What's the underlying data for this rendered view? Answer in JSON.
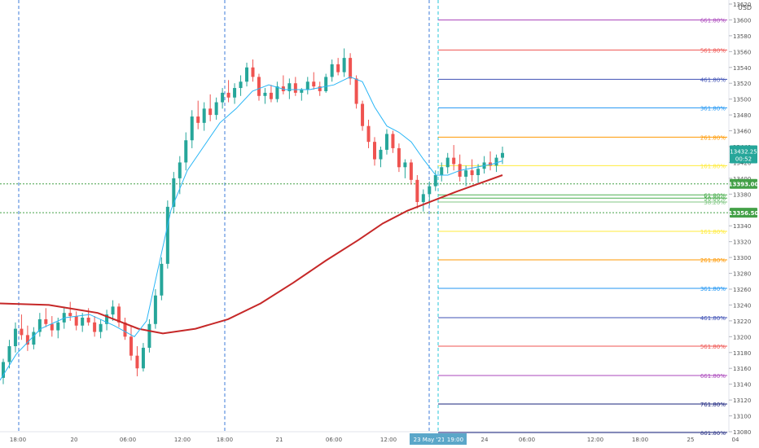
{
  "chart_data": {
    "type": "candlestick",
    "currency": "USD",
    "price_axis": {
      "min": 13080,
      "max": 13620,
      "ticks": [
        13620,
        13600,
        13580,
        13560,
        13540,
        13520,
        13500,
        13480,
        13460,
        13440,
        13420,
        13400,
        13380,
        13360,
        13340,
        13320,
        13300,
        13280,
        13260,
        13240,
        13220,
        13200,
        13180,
        13160,
        13140,
        13120,
        13100,
        13080
      ]
    },
    "time_axis": {
      "labels": [
        "18:00",
        "20",
        "06:00",
        "12:00",
        "18:00",
        "21",
        "06:00",
        "12:00",
        "23 May '21",
        "19:00",
        "24",
        "06:00",
        "12:00",
        "18:00",
        "25",
        "04"
      ],
      "highlighted": [
        "23 May '21",
        "19:00"
      ]
    },
    "current_price": {
      "value": "13432.25",
      "countdown": "00:52",
      "color": "#26a69a"
    },
    "level_badges": [
      {
        "value": "13393.00",
        "color": "#43a047"
      },
      {
        "value": "13356.50",
        "color": "#43a047"
      }
    ],
    "fib_levels": [
      {
        "label": "661.80%",
        "price": 13600,
        "color": "#ab47bc"
      },
      {
        "label": "561.80%",
        "price": 13562,
        "color": "#ef5350"
      },
      {
        "label": "461.80%",
        "price": 13525,
        "color": "#3f51b5"
      },
      {
        "label": "361.80%",
        "price": 13489,
        "color": "#2196f3"
      },
      {
        "label": "261.80%",
        "price": 13452,
        "color": "#ff9800"
      },
      {
        "label": "161.80%",
        "price": 13416,
        "color": "#ffeb3b"
      },
      {
        "label": "61.80%",
        "price": 13379,
        "color": "#4caf50"
      },
      {
        "label": "50.00%",
        "price": 13375,
        "color": "#4caf50"
      },
      {
        "label": "38.20%",
        "price": 13370,
        "color": "#81c784"
      },
      {
        "label": "161.80%",
        "price": 13333,
        "color": "#ffeb3b"
      },
      {
        "label": "261.80%",
        "price": 13297,
        "color": "#ff9800"
      },
      {
        "label": "361.80%",
        "price": 13261,
        "color": "#2196f3"
      },
      {
        "label": "461.80%",
        "price": 13224,
        "color": "#3f51b5"
      },
      {
        "label": "561.80%",
        "price": 13188,
        "color": "#ef5350"
      },
      {
        "label": "661.80%",
        "price": 13151,
        "color": "#ab47bc"
      },
      {
        "label": "761.80%",
        "price": 13115,
        "color": "#1a237e"
      },
      {
        "label": "861.80%",
        "price": 13079,
        "color": "#1a237e"
      }
    ],
    "ma_long": {
      "color": "#c62828",
      "values": [
        [
          0,
          13242
        ],
        [
          60,
          13240
        ],
        [
          120,
          13230
        ],
        [
          170,
          13210
        ],
        [
          200,
          13204
        ],
        [
          240,
          13210
        ],
        [
          280,
          13222
        ],
        [
          320,
          13242
        ],
        [
          360,
          13268
        ],
        [
          400,
          13296
        ],
        [
          440,
          13322
        ],
        [
          470,
          13343
        ],
        [
          500,
          13359
        ],
        [
          530,
          13371
        ],
        [
          560,
          13383
        ],
        [
          590,
          13394
        ],
        [
          617,
          13404
        ]
      ]
    },
    "ma_short": {
      "color": "#29b6f6",
      "values": [
        [
          0,
          13145
        ],
        [
          20,
          13178
        ],
        [
          50,
          13210
        ],
        [
          80,
          13224
        ],
        [
          110,
          13228
        ],
        [
          140,
          13214
        ],
        [
          165,
          13200
        ],
        [
          180,
          13220
        ],
        [
          195,
          13290
        ],
        [
          210,
          13360
        ],
        [
          230,
          13410
        ],
        [
          250,
          13440
        ],
        [
          270,
          13470
        ],
        [
          290,
          13488
        ],
        [
          310,
          13510
        ],
        [
          330,
          13518
        ],
        [
          350,
          13512
        ],
        [
          380,
          13512
        ],
        [
          410,
          13518
        ],
        [
          430,
          13528
        ],
        [
          445,
          13522
        ],
        [
          460,
          13490
        ],
        [
          475,
          13466
        ],
        [
          490,
          13458
        ],
        [
          505,
          13446
        ],
        [
          520,
          13424
        ],
        [
          535,
          13404
        ],
        [
          550,
          13404
        ],
        [
          565,
          13410
        ],
        [
          585,
          13414
        ],
        [
          605,
          13418
        ],
        [
          617,
          13422
        ]
      ]
    },
    "candles_ohlc": [
      [
        13148,
        13172,
        13140,
        13168
      ],
      [
        13168,
        13196,
        13160,
        13188
      ],
      [
        13188,
        13218,
        13180,
        13210
      ],
      [
        13210,
        13228,
        13196,
        13202
      ],
      [
        13202,
        13214,
        13182,
        13190
      ],
      [
        13190,
        13212,
        13184,
        13206
      ],
      [
        13206,
        13230,
        13200,
        13222
      ],
      [
        13222,
        13236,
        13212,
        13216
      ],
      [
        13216,
        13226,
        13200,
        13208
      ],
      [
        13208,
        13224,
        13198,
        13218
      ],
      [
        13218,
        13238,
        13210,
        13230
      ],
      [
        13230,
        13244,
        13220,
        13226
      ],
      [
        13226,
        13232,
        13208,
        13214
      ],
      [
        13214,
        13230,
        13206,
        13224
      ],
      [
        13224,
        13236,
        13214,
        13218
      ],
      [
        13218,
        13226,
        13200,
        13206
      ],
      [
        13206,
        13222,
        13198,
        13216
      ],
      [
        13216,
        13234,
        13208,
        13228
      ],
      [
        13228,
        13246,
        13220,
        13238
      ],
      [
        13238,
        13242,
        13212,
        13218
      ],
      [
        13218,
        13224,
        13196,
        13200
      ],
      [
        13200,
        13214,
        13170,
        13176
      ],
      [
        13176,
        13188,
        13150,
        13160
      ],
      [
        13160,
        13192,
        13156,
        13186
      ],
      [
        13186,
        13222,
        13180,
        13216
      ],
      [
        13216,
        13260,
        13210,
        13252
      ],
      [
        13252,
        13300,
        13246,
        13292
      ],
      [
        13292,
        13372,
        13286,
        13364
      ],
      [
        13364,
        13408,
        13356,
        13400
      ],
      [
        13400,
        13428,
        13380,
        13420
      ],
      [
        13420,
        13458,
        13410,
        13448
      ],
      [
        13448,
        13486,
        13438,
        13478
      ],
      [
        13478,
        13498,
        13462,
        13470
      ],
      [
        13470,
        13496,
        13460,
        13488
      ],
      [
        13488,
        13506,
        13472,
        13480
      ],
      [
        13480,
        13502,
        13474,
        13496
      ],
      [
        13496,
        13514,
        13488,
        13508
      ],
      [
        13508,
        13524,
        13496,
        13502
      ],
      [
        13502,
        13520,
        13494,
        13514
      ],
      [
        13514,
        13530,
        13504,
        13522
      ],
      [
        13522,
        13546,
        13516,
        13540
      ],
      [
        13540,
        13550,
        13522,
        13528
      ],
      [
        13528,
        13532,
        13498,
        13504
      ],
      [
        13504,
        13514,
        13494,
        13508
      ],
      [
        13508,
        13518,
        13496,
        13500
      ],
      [
        13500,
        13522,
        13496,
        13516
      ],
      [
        13516,
        13530,
        13506,
        13510
      ],
      [
        13510,
        13526,
        13500,
        13520
      ],
      [
        13520,
        13528,
        13504,
        13508
      ],
      [
        13508,
        13514,
        13498,
        13512
      ],
      [
        13512,
        13528,
        13506,
        13522
      ],
      [
        13522,
        13534,
        13512,
        13516
      ],
      [
        13516,
        13522,
        13504,
        13510
      ],
      [
        13510,
        13532,
        13508,
        13528
      ],
      [
        13528,
        13550,
        13522,
        13544
      ],
      [
        13544,
        13552,
        13530,
        13534
      ],
      [
        13534,
        13564,
        13528,
        13552
      ],
      [
        13552,
        13558,
        13518,
        13526
      ],
      [
        13526,
        13530,
        13488,
        13494
      ],
      [
        13494,
        13498,
        13460,
        13466
      ],
      [
        13466,
        13474,
        13438,
        13446
      ],
      [
        13446,
        13452,
        13416,
        13424
      ],
      [
        13424,
        13440,
        13414,
        13436
      ],
      [
        13436,
        13462,
        13430,
        13456
      ],
      [
        13456,
        13460,
        13432,
        13438
      ],
      [
        13438,
        13444,
        13408,
        13414
      ],
      [
        13414,
        13424,
        13400,
        13420
      ],
      [
        13420,
        13424,
        13392,
        13398
      ],
      [
        13398,
        13404,
        13362,
        13370
      ],
      [
        13370,
        13386,
        13358,
        13380
      ],
      [
        13380,
        13396,
        13366,
        13390
      ],
      [
        13390,
        13410,
        13384,
        13404
      ],
      [
        13404,
        13420,
        13396,
        13414
      ],
      [
        13414,
        13432,
        13406,
        13426
      ],
      [
        13426,
        13442,
        13410,
        13418
      ],
      [
        13418,
        13430,
        13396,
        13402
      ],
      [
        13402,
        13416,
        13390,
        13410
      ],
      [
        13410,
        13424,
        13396,
        13404
      ],
      [
        13404,
        13418,
        13394,
        13412
      ],
      [
        13412,
        13428,
        13406,
        13420
      ],
      [
        13420,
        13434,
        13410,
        13416
      ],
      [
        13416,
        13430,
        13408,
        13426
      ],
      [
        13426,
        13440,
        13418,
        13432
      ]
    ]
  }
}
